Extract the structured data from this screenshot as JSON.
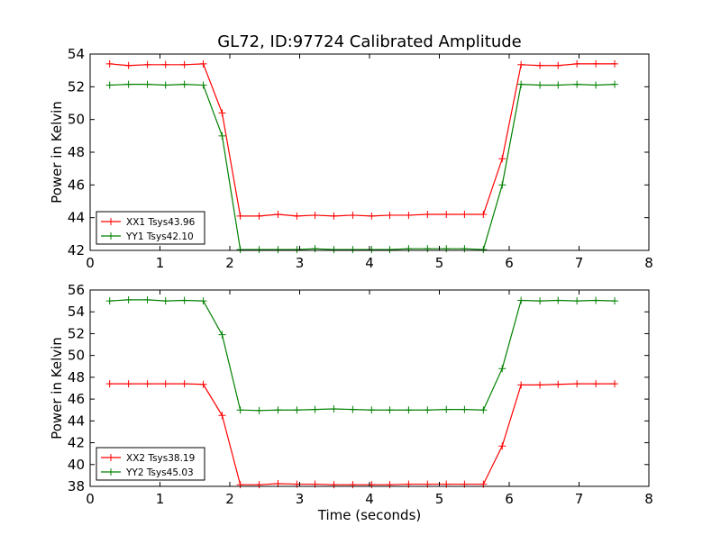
{
  "title": "GL72, ID:97724 Calibrated Amplitude",
  "chart_data": [
    {
      "type": "line",
      "ylabel": "Power in Kelvin",
      "xlabel": "",
      "xlim": [
        0,
        8
      ],
      "ylim": [
        42,
        54
      ],
      "xticks": [
        0,
        1,
        2,
        3,
        4,
        5,
        6,
        7,
        8
      ],
      "yticks": [
        42,
        44,
        46,
        48,
        50,
        52,
        54
      ],
      "legend_position": "bottom-left",
      "x": [
        0.28,
        0.55,
        0.82,
        1.08,
        1.35,
        1.62,
        1.89,
        2.15,
        2.42,
        2.69,
        2.96,
        3.22,
        3.49,
        3.76,
        4.03,
        4.29,
        4.56,
        4.83,
        5.1,
        5.36,
        5.63,
        5.9,
        6.17,
        6.44,
        6.7,
        6.97,
        7.24,
        7.51
      ],
      "series": [
        {
          "name": "XX1 Tsys43.96",
          "color": "#ff0000",
          "values": [
            53.4,
            53.3,
            53.35,
            53.35,
            53.35,
            53.4,
            50.4,
            44.1,
            44.1,
            44.2,
            44.1,
            44.15,
            44.1,
            44.15,
            44.1,
            44.15,
            44.15,
            44.2,
            44.2,
            44.2,
            44.2,
            47.6,
            53.35,
            53.3,
            53.3,
            53.4,
            53.4,
            53.4
          ]
        },
        {
          "name": "YY1 Tsys42.10",
          "color": "#008000",
          "values": [
            52.1,
            52.15,
            52.15,
            52.1,
            52.15,
            52.1,
            49.0,
            42.05,
            42.05,
            42.05,
            42.05,
            42.1,
            42.05,
            42.05,
            42.05,
            42.05,
            42.1,
            42.1,
            42.1,
            42.1,
            42.05,
            46.0,
            52.15,
            52.1,
            52.1,
            52.15,
            52.1,
            52.15
          ]
        }
      ]
    },
    {
      "type": "line",
      "ylabel": "Power in Kelvin",
      "xlabel": "Time (seconds)",
      "xlim": [
        0,
        8
      ],
      "ylim": [
        38,
        56
      ],
      "xticks": [
        0,
        1,
        2,
        3,
        4,
        5,
        6,
        7,
        8
      ],
      "yticks": [
        38,
        40,
        42,
        44,
        46,
        48,
        50,
        52,
        54,
        56
      ],
      "legend_position": "bottom-left",
      "x": [
        0.28,
        0.55,
        0.82,
        1.08,
        1.35,
        1.62,
        1.89,
        2.15,
        2.42,
        2.69,
        2.96,
        3.22,
        3.49,
        3.76,
        4.03,
        4.29,
        4.56,
        4.83,
        5.1,
        5.36,
        5.63,
        5.9,
        6.17,
        6.44,
        6.7,
        6.97,
        7.24,
        7.51
      ],
      "series": [
        {
          "name": "XX2 Tsys38.19",
          "color": "#ff0000",
          "values": [
            47.4,
            47.4,
            47.4,
            47.4,
            47.4,
            47.35,
            44.5,
            38.15,
            38.15,
            38.25,
            38.2,
            38.2,
            38.15,
            38.15,
            38.15,
            38.15,
            38.2,
            38.2,
            38.2,
            38.2,
            38.2,
            41.7,
            47.3,
            47.3,
            47.35,
            47.4,
            47.4,
            47.4
          ]
        },
        {
          "name": "YY2 Tsys45.03",
          "color": "#008000",
          "values": [
            55.0,
            55.1,
            55.1,
            55.0,
            55.05,
            55.0,
            51.9,
            45.0,
            44.95,
            45.0,
            45.0,
            45.05,
            45.1,
            45.05,
            45.0,
            45.0,
            45.0,
            45.0,
            45.05,
            45.05,
            45.0,
            48.8,
            55.05,
            55.0,
            55.05,
            55.0,
            55.05,
            55.0
          ]
        }
      ]
    }
  ]
}
